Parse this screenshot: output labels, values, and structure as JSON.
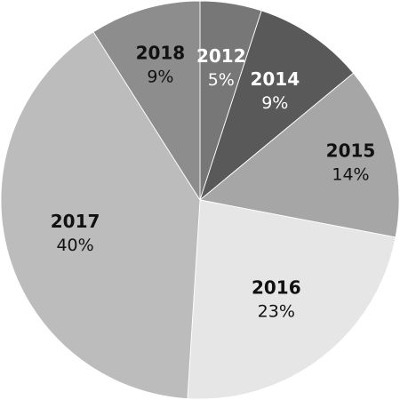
{
  "chart_data": {
    "type": "pie",
    "title": "",
    "legend": "none",
    "start_angle_deg": -90,
    "direction": "clockwise",
    "slices": [
      {
        "label": "2012",
        "value": 5,
        "value_label": "5%",
        "color": "#777777",
        "label_color": "#ffffff"
      },
      {
        "label": "2014",
        "value": 9,
        "value_label": "9%",
        "color": "#595959",
        "label_color": "#ffffff"
      },
      {
        "label": "2015",
        "value": 14,
        "value_label": "14%",
        "color": "#a6a6a6",
        "label_color": "#111111"
      },
      {
        "label": "2016",
        "value": 23,
        "value_label": "23%",
        "color": "#e6e6e6",
        "label_color": "#111111"
      },
      {
        "label": "2017",
        "value": 40,
        "value_label": "40%",
        "color": "#bcbcbc",
        "label_color": "#111111"
      },
      {
        "label": "2018",
        "value": 9,
        "value_label": "9%",
        "color": "#8d8d8d",
        "label_color": "#111111"
      }
    ]
  }
}
